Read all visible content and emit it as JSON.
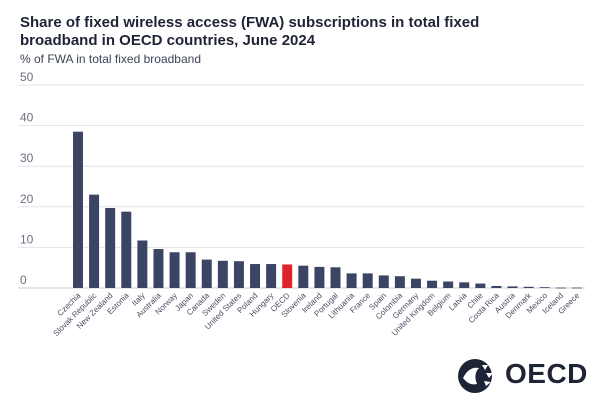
{
  "chart_data": {
    "type": "bar",
    "title": "Share of fixed wireless access (FWA) subscriptions in total fixed broadband in OECD countries, June 2024",
    "subtitle": "% of FWA in total fixed broadband",
    "xlabel": "",
    "ylabel": "",
    "ylim": [
      0,
      50
    ],
    "yticks": [
      0,
      10,
      20,
      30,
      40,
      50
    ],
    "grid": true,
    "categories": [
      "Czechia",
      "Slovak Republic",
      "New Zealand",
      "Estonia",
      "Italy",
      "Australia",
      "Norway",
      "Japan",
      "Canada",
      "Sweden",
      "United States",
      "Poland",
      "Hungary",
      "OECD",
      "Slovenia",
      "Ireland",
      "Portugal",
      "Lithuania",
      "France",
      "Spain",
      "Colombia",
      "Germany",
      "United Kingdom",
      "Belgium",
      "Latvia",
      "Chile",
      "Costa Rica",
      "Austria",
      "Denmark",
      "Mexico",
      "Iceland",
      "Greece"
    ],
    "values": [
      38.5,
      23,
      19.7,
      18.8,
      11.7,
      9.6,
      8.8,
      8.8,
      7,
      6.7,
      6.6,
      5.9,
      5.9,
      5.8,
      5.5,
      5.2,
      5.1,
      3.6,
      3.6,
      3.1,
      2.9,
      2.3,
      1.8,
      1.6,
      1.4,
      1.1,
      0.5,
      0.4,
      0.3,
      0.2,
      0.1,
      0.1
    ],
    "highlight": "OECD",
    "colors": {
      "bar": "#3c4463",
      "highlight": "#e0232a",
      "grid": "#e2e4ea",
      "axis_text": "#6b7081"
    }
  },
  "footer": {
    "logo_text": "OECD"
  }
}
